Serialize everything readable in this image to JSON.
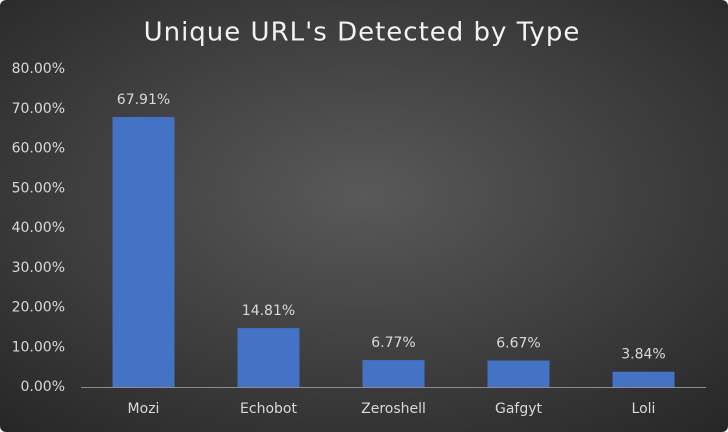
{
  "chart_data": {
    "type": "bar",
    "title": "Unique URL's Detected by Type",
    "categories": [
      "Mozi",
      "Echobot",
      "Zeroshell",
      "Gafgyt",
      "Loli"
    ],
    "values": [
      67.91,
      14.81,
      6.77,
      6.67,
      3.84
    ],
    "value_labels": [
      "67.91%",
      "14.81%",
      "6.77%",
      "6.67%",
      "3.84%"
    ],
    "color": "#4472c4",
    "ylim": [
      0,
      80
    ],
    "yticks": [
      {
        "value": 0,
        "label": "0.00%"
      },
      {
        "value": 10,
        "label": "10.00%"
      },
      {
        "value": 20,
        "label": "20.00%"
      },
      {
        "value": 30,
        "label": "30.00%"
      },
      {
        "value": 40,
        "label": "40.00%"
      },
      {
        "value": 50,
        "label": "50.00%"
      },
      {
        "value": 60,
        "label": "60.00%"
      },
      {
        "value": 70,
        "label": "70.00%"
      },
      {
        "value": 80,
        "label": "80.00%"
      }
    ],
    "grid": false
  }
}
